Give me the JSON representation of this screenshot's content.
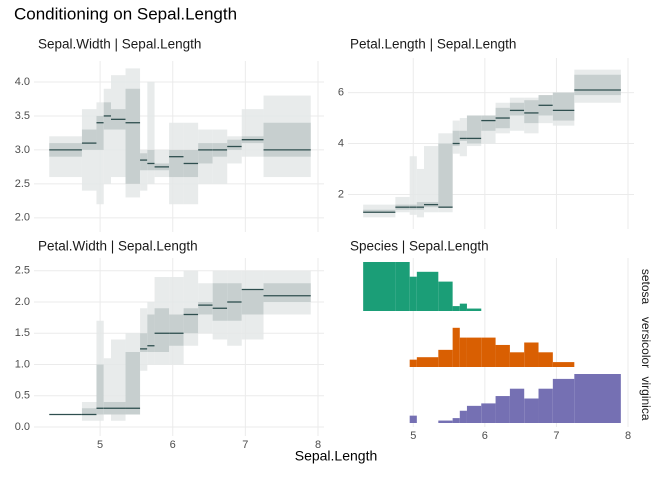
{
  "title": "Conditioning on Sepal.Length",
  "xlabel": "Sepal.Length",
  "chart_data": [
    {
      "type": "interval",
      "title": "Sepal.Width | Sepal.Length",
      "breaks": [
        4.3,
        4.75,
        4.95,
        5.05,
        5.15,
        5.35,
        5.55,
        5.65,
        5.75,
        5.95,
        6.15,
        6.35,
        6.55,
        6.75,
        6.95,
        7.25,
        7.9
      ],
      "lo": [
        2.6,
        2.4,
        2.2,
        2.5,
        2.6,
        2.3,
        2.4,
        2.5,
        2.6,
        2.2,
        2.2,
        2.5,
        2.5,
        2.8,
        2.9,
        2.6
      ],
      "q1": [
        2.9,
        3.0,
        3.0,
        3.3,
        3.3,
        2.5,
        2.7,
        2.7,
        2.7,
        2.6,
        2.6,
        2.8,
        2.9,
        3.0,
        3.1,
        2.9
      ],
      "median": [
        3.0,
        3.1,
        3.4,
        3.5,
        3.45,
        3.4,
        2.85,
        2.8,
        2.75,
        2.9,
        2.8,
        3.0,
        3.0,
        3.05,
        3.15,
        3.0
      ],
      "q3": [
        3.1,
        3.3,
        3.5,
        3.7,
        3.6,
        3.9,
        2.95,
        3.0,
        2.8,
        3.0,
        3.0,
        3.1,
        3.1,
        3.15,
        3.2,
        3.4
      ],
      "hi": [
        3.2,
        3.6,
        3.7,
        3.9,
        4.1,
        4.2,
        3.0,
        4.0,
        3.0,
        3.4,
        3.4,
        3.3,
        3.3,
        3.2,
        3.6,
        3.8
      ],
      "colors": {
        "outer": "#e4e7e7",
        "inner": "#c3cccc",
        "median": "#2f4f4f"
      },
      "xlim": [
        4.2,
        8.0
      ],
      "xticks": [
        5,
        6,
        7,
        8
      ],
      "show_x_labels": false,
      "ylim": [
        1.85,
        4.25
      ],
      "yticks": [
        {
          "value": 2,
          "label": "2.0"
        },
        2.5,
        {
          "value": 3,
          "label": "3.0"
        },
        3.5,
        {
          "value": 4,
          "label": "4.0"
        }
      ],
      "grid": true
    },
    {
      "type": "interval",
      "title": "Petal.Length | Sepal.Length",
      "breaks": [
        4.3,
        4.75,
        4.95,
        5.05,
        5.15,
        5.35,
        5.55,
        5.65,
        5.75,
        5.95,
        6.15,
        6.35,
        6.55,
        6.75,
        6.95,
        7.25,
        7.9
      ],
      "lo": [
        1.1,
        1.3,
        1.2,
        1.1,
        1.3,
        1.3,
        3.6,
        3.5,
        3.9,
        4.0,
        4.4,
        4.5,
        4.4,
        4.8,
        4.7,
        5.6
      ],
      "q1": [
        1.3,
        1.4,
        1.4,
        1.4,
        1.5,
        1.5,
        3.9,
        4.1,
        4.0,
        4.5,
        4.6,
        5.1,
        4.8,
        5.1,
        4.9,
        5.9
      ],
      "median": [
        1.3,
        1.5,
        1.5,
        1.5,
        1.6,
        1.5,
        4.0,
        4.2,
        4.2,
        4.9,
        5.0,
        5.3,
        5.2,
        5.5,
        5.3,
        6.1
      ],
      "q3": [
        1.4,
        1.6,
        1.6,
        1.7,
        1.7,
        4.0,
        4.5,
        4.5,
        5.1,
        5.1,
        5.4,
        5.6,
        5.7,
        5.9,
        6.0,
        6.7
      ],
      "hi": [
        1.6,
        1.9,
        3.5,
        3.0,
        3.9,
        4.4,
        4.9,
        5.0,
        5.1,
        5.1,
        5.6,
        5.8,
        5.8,
        5.9,
        6.0,
        6.9
      ],
      "colors": {
        "outer": "#e4e7e7",
        "inner": "#c3cccc",
        "median": "#2f4f4f"
      },
      "xlim": [
        4.2,
        8.0
      ],
      "xticks": [
        5,
        6,
        7,
        8
      ],
      "show_x_labels": false,
      "ylim": [
        0.8,
        7.2
      ],
      "yticks": [
        2,
        4,
        6
      ],
      "grid": true
    },
    {
      "type": "interval",
      "title": "Petal.Width | Sepal.Length",
      "breaks": [
        4.3,
        4.75,
        4.95,
        5.05,
        5.15,
        5.35,
        5.55,
        5.65,
        5.75,
        5.95,
        6.15,
        6.35,
        6.55,
        6.75,
        6.95,
        7.25,
        7.9
      ],
      "lo": [
        0.2,
        0.1,
        0.1,
        0.2,
        0.1,
        0.2,
        0.9,
        1.0,
        1.0,
        1.0,
        1.3,
        1.5,
        1.4,
        1.3,
        1.4,
        1.8
      ],
      "q1": [
        0.2,
        0.2,
        0.2,
        0.2,
        0.2,
        0.2,
        1.2,
        1.2,
        1.2,
        1.3,
        1.5,
        1.8,
        1.7,
        1.7,
        1.8,
        2.0
      ],
      "median": [
        0.2,
        0.2,
        0.3,
        0.3,
        0.3,
        0.3,
        1.25,
        1.3,
        1.5,
        1.5,
        1.8,
        1.95,
        1.9,
        2.0,
        2.2,
        2.1
      ],
      "q3": [
        0.2,
        0.3,
        1.0,
        0.4,
        0.4,
        1.2,
        1.5,
        1.8,
        1.9,
        1.8,
        1.9,
        2.0,
        2.3,
        2.3,
        2.2,
        2.3
      ],
      "hi": [
        0.2,
        0.4,
        1.7,
        1.1,
        1.4,
        1.5,
        1.9,
        2.0,
        2.4,
        2.4,
        2.5,
        2.3,
        2.5,
        2.5,
        2.5,
        2.5
      ],
      "colors": {
        "outer": "#e4e7e7",
        "inner": "#c3cccc",
        "median": "#2f4f4f"
      },
      "xlim": [
        4.2,
        8.0
      ],
      "xticks": [
        5,
        6,
        7,
        8
      ],
      "show_x_labels": true,
      "ylim": [
        -0.08,
        2.64
      ],
      "yticks": [
        {
          "value": 0,
          "label": "0.0"
        },
        0.5,
        {
          "value": 1,
          "label": "1.0"
        },
        1.5,
        {
          "value": 2,
          "label": "2.0"
        },
        2.5
      ],
      "grid": true
    },
    {
      "type": "facet-bars",
      "title": "Species | Sepal.Length",
      "breaks": [
        4.3,
        4.75,
        4.95,
        5.05,
        5.15,
        5.35,
        5.55,
        5.65,
        5.75,
        5.95,
        6.15,
        6.35,
        6.55,
        6.75,
        6.95,
        7.25,
        7.9
      ],
      "series": [
        {
          "name": "setosa",
          "color": "#1b9e77",
          "values": [
            1,
            1,
            0.7,
            0.8,
            0.8,
            0.6,
            0.1,
            0.15,
            0.05,
            0,
            0,
            0,
            0,
            0,
            0,
            0
          ]
        },
        {
          "name": "versicolor",
          "color": "#d95f02",
          "values": [
            0,
            0,
            0.15,
            0.2,
            0.2,
            0.35,
            0.8,
            0.6,
            0.6,
            0.6,
            0.45,
            0.3,
            0.5,
            0.3,
            0.1,
            0
          ]
        },
        {
          "name": "virginica",
          "color": "#7570b3",
          "values": [
            0,
            0,
            0.15,
            0,
            0,
            0.05,
            0.1,
            0.25,
            0.35,
            0.4,
            0.55,
            0.7,
            0.5,
            0.7,
            0.9,
            1
          ]
        }
      ],
      "xlim": [
        4.2,
        8.0
      ],
      "xticks": [
        5,
        6,
        7,
        8
      ],
      "show_x_labels": true,
      "ylim": [
        0,
        1
      ],
      "grid": true
    }
  ]
}
